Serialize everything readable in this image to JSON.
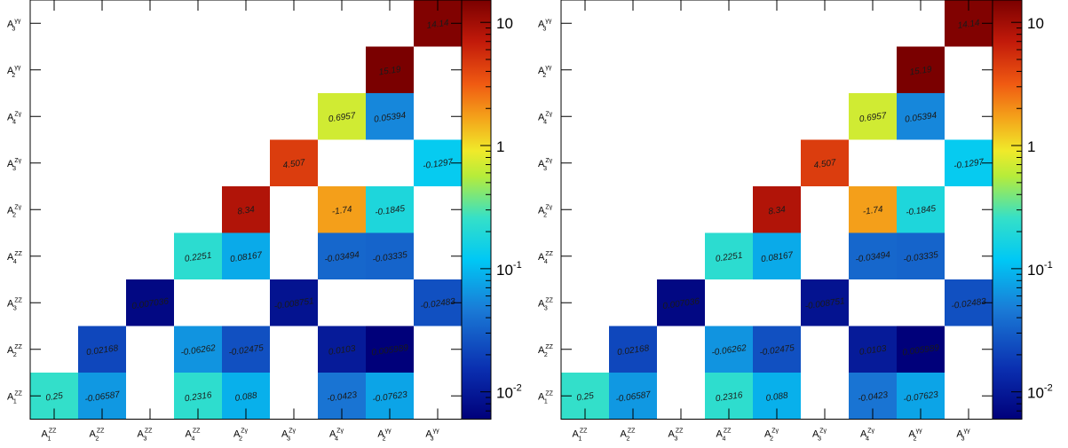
{
  "chart_data": [
    {
      "type": "heatmap",
      "title": "",
      "xlabel": "",
      "ylabel": "",
      "x_labels": [
        {
          "base": "A",
          "sup": "ZZ",
          "sub": "1"
        },
        {
          "base": "A",
          "sup": "ZZ",
          "sub": "2"
        },
        {
          "base": "A",
          "sup": "ZZ",
          "sub": "3"
        },
        {
          "base": "A",
          "sup": "ZZ",
          "sub": "4"
        },
        {
          "base": "A",
          "sup": "Zγ",
          "sub": "2"
        },
        {
          "base": "A",
          "sup": "Zγ",
          "sub": "3"
        },
        {
          "base": "A",
          "sup": "Zγ",
          "sub": "4"
        },
        {
          "base": "A",
          "sup": "γγ",
          "sub": "2"
        },
        {
          "base": "A",
          "sup": "γγ",
          "sub": "3"
        }
      ],
      "y_labels": [
        {
          "base": "A",
          "sup": "ZZ",
          "sub": "1"
        },
        {
          "base": "A",
          "sup": "ZZ",
          "sub": "2"
        },
        {
          "base": "A",
          "sup": "ZZ",
          "sub": "3"
        },
        {
          "base": "A",
          "sup": "ZZ",
          "sub": "4"
        },
        {
          "base": "A",
          "sup": "Zγ",
          "sub": "2"
        },
        {
          "base": "A",
          "sup": "Zγ",
          "sub": "3"
        },
        {
          "base": "A",
          "sup": "Zγ",
          "sub": "4"
        },
        {
          "base": "A",
          "sup": "γγ",
          "sub": "2"
        },
        {
          "base": "A",
          "sup": "γγ",
          "sub": "3"
        }
      ],
      "color_scale": "log",
      "zlim": [
        0.006,
        15.19
      ],
      "colorbar_ticks": [
        {
          "value": 0.01,
          "base": "10",
          "exp": "-2"
        },
        {
          "value": 0.1,
          "base": "10",
          "exp": "-1"
        },
        {
          "value": 1,
          "base": "1",
          "exp": ""
        },
        {
          "value": 10,
          "base": "10",
          "exp": ""
        }
      ],
      "cells": [
        {
          "col": 0,
          "row": 0,
          "value": 0.25,
          "label": "0.25"
        },
        {
          "col": 1,
          "row": 0,
          "value": -0.06587,
          "label": "-0.06587"
        },
        {
          "col": 3,
          "row": 0,
          "value": 0.2316,
          "label": "0.2316"
        },
        {
          "col": 4,
          "row": 0,
          "value": 0.088,
          "label": "0.088"
        },
        {
          "col": 6,
          "row": 0,
          "value": -0.0423,
          "label": "-0.0423"
        },
        {
          "col": 7,
          "row": 0,
          "value": -0.07623,
          "label": "-0.07623"
        },
        {
          "col": 1,
          "row": 1,
          "value": 0.02168,
          "label": "0.02168"
        },
        {
          "col": 3,
          "row": 1,
          "value": -0.06262,
          "label": "-0.06262"
        },
        {
          "col": 4,
          "row": 1,
          "value": -0.02475,
          "label": "-0.02475"
        },
        {
          "col": 6,
          "row": 1,
          "value": 0.0103,
          "label": "0.0103"
        },
        {
          "col": 7,
          "row": 1,
          "value": 0.00599,
          "label": "0.005989"
        },
        {
          "col": 2,
          "row": 2,
          "value": 0.007036,
          "label": "0.007036"
        },
        {
          "col": 5,
          "row": 2,
          "value": -0.008751,
          "label": "-0.008751"
        },
        {
          "col": 8,
          "row": 2,
          "value": -0.02483,
          "label": "-0.02483"
        },
        {
          "col": 3,
          "row": 3,
          "value": 0.2251,
          "label": "0.2251"
        },
        {
          "col": 4,
          "row": 3,
          "value": 0.08167,
          "label": "0.08167"
        },
        {
          "col": 6,
          "row": 3,
          "value": -0.03494,
          "label": "-0.03494"
        },
        {
          "col": 7,
          "row": 3,
          "value": -0.03335,
          "label": "-0.03335"
        },
        {
          "col": 4,
          "row": 4,
          "value": 8.34,
          "label": "8.34"
        },
        {
          "col": 6,
          "row": 4,
          "value": -1.74,
          "label": "-1.74"
        },
        {
          "col": 7,
          "row": 4,
          "value": -0.1845,
          "label": "-0.1845"
        },
        {
          "col": 5,
          "row": 5,
          "value": 4.507,
          "label": "4.507"
        },
        {
          "col": 8,
          "row": 5,
          "value": -0.1297,
          "label": "-0.1297"
        },
        {
          "col": 6,
          "row": 6,
          "value": 0.6957,
          "label": "0.6957"
        },
        {
          "col": 7,
          "row": 6,
          "value": 0.05394,
          "label": "0.05394"
        },
        {
          "col": 7,
          "row": 7,
          "value": 15.19,
          "label": "15.19"
        },
        {
          "col": 8,
          "row": 8,
          "value": 14.14,
          "label": "14.14"
        }
      ]
    },
    {
      "type": "heatmap",
      "title": "",
      "xlabel": "",
      "ylabel": "",
      "x_labels": [
        {
          "base": "A",
          "sup": "ZZ",
          "sub": "1"
        },
        {
          "base": "A",
          "sup": "ZZ",
          "sub": "2"
        },
        {
          "base": "A",
          "sup": "ZZ",
          "sub": "3"
        },
        {
          "base": "A",
          "sup": "ZZ",
          "sub": "4"
        },
        {
          "base": "A",
          "sup": "Zγ",
          "sub": "2"
        },
        {
          "base": "A",
          "sup": "Zγ",
          "sub": "3"
        },
        {
          "base": "A",
          "sup": "Zγ",
          "sub": "4"
        },
        {
          "base": "A",
          "sup": "γγ",
          "sub": "2"
        },
        {
          "base": "A",
          "sup": "γγ",
          "sub": "3"
        }
      ],
      "y_labels": [
        {
          "base": "A",
          "sup": "ZZ",
          "sub": "1"
        },
        {
          "base": "A",
          "sup": "ZZ",
          "sub": "2"
        },
        {
          "base": "A",
          "sup": "ZZ",
          "sub": "3"
        },
        {
          "base": "A",
          "sup": "ZZ",
          "sub": "4"
        },
        {
          "base": "A",
          "sup": "Zγ",
          "sub": "2"
        },
        {
          "base": "A",
          "sup": "Zγ",
          "sub": "3"
        },
        {
          "base": "A",
          "sup": "Zγ",
          "sub": "4"
        },
        {
          "base": "A",
          "sup": "γγ",
          "sub": "2"
        },
        {
          "base": "A",
          "sup": "γγ",
          "sub": "3"
        }
      ],
      "color_scale": "log",
      "zlim": [
        0.006,
        15.19
      ],
      "colorbar_ticks": [
        {
          "value": 0.01,
          "base": "10",
          "exp": "-2"
        },
        {
          "value": 0.1,
          "base": "10",
          "exp": "-1"
        },
        {
          "value": 1,
          "base": "1",
          "exp": ""
        },
        {
          "value": 10,
          "base": "10",
          "exp": ""
        }
      ],
      "cells": [
        {
          "col": 0,
          "row": 0,
          "value": 0.25,
          "label": "0.25"
        },
        {
          "col": 1,
          "row": 0,
          "value": -0.06587,
          "label": "-0.06587"
        },
        {
          "col": 3,
          "row": 0,
          "value": 0.2316,
          "label": "0.2316"
        },
        {
          "col": 4,
          "row": 0,
          "value": 0.088,
          "label": "0.088"
        },
        {
          "col": 6,
          "row": 0,
          "value": -0.0423,
          "label": "-0.0423"
        },
        {
          "col": 7,
          "row": 0,
          "value": -0.07623,
          "label": "-0.07623"
        },
        {
          "col": 1,
          "row": 1,
          "value": 0.02168,
          "label": "0.02168"
        },
        {
          "col": 3,
          "row": 1,
          "value": -0.06262,
          "label": "-0.06262"
        },
        {
          "col": 4,
          "row": 1,
          "value": -0.02475,
          "label": "-0.02475"
        },
        {
          "col": 6,
          "row": 1,
          "value": 0.0103,
          "label": "0.0103"
        },
        {
          "col": 7,
          "row": 1,
          "value": 0.00599,
          "label": "0.005989"
        },
        {
          "col": 2,
          "row": 2,
          "value": 0.007036,
          "label": "0.007036"
        },
        {
          "col": 5,
          "row": 2,
          "value": -0.008751,
          "label": "-0.008751"
        },
        {
          "col": 8,
          "row": 2,
          "value": -0.02483,
          "label": "-0.02483"
        },
        {
          "col": 3,
          "row": 3,
          "value": 0.2251,
          "label": "0.2251"
        },
        {
          "col": 4,
          "row": 3,
          "value": 0.08167,
          "label": "0.08167"
        },
        {
          "col": 6,
          "row": 3,
          "value": -0.03494,
          "label": "-0.03494"
        },
        {
          "col": 7,
          "row": 3,
          "value": -0.03335,
          "label": "-0.03335"
        },
        {
          "col": 4,
          "row": 4,
          "value": 8.34,
          "label": "8.34"
        },
        {
          "col": 6,
          "row": 4,
          "value": -1.74,
          "label": "-1.74"
        },
        {
          "col": 7,
          "row": 4,
          "value": -0.1845,
          "label": "-0.1845"
        },
        {
          "col": 5,
          "row": 5,
          "value": 4.507,
          "label": "4.507"
        },
        {
          "col": 8,
          "row": 5,
          "value": -0.1297,
          "label": "-0.1297"
        },
        {
          "col": 6,
          "row": 6,
          "value": 0.6957,
          "label": "0.6957"
        },
        {
          "col": 7,
          "row": 6,
          "value": 0.05394,
          "label": "0.05394"
        },
        {
          "col": 7,
          "row": 7,
          "value": 15.19,
          "label": "15.19"
        },
        {
          "col": 8,
          "row": 8,
          "value": 14.14,
          "label": "14.14"
        }
      ]
    }
  ]
}
